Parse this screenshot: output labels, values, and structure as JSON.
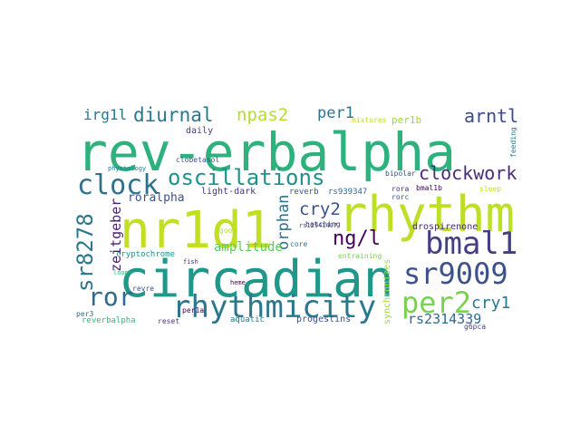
{
  "words": [
    {
      "text": "rev-erbalpha",
      "color": "#2db27d"
    },
    {
      "text": "circadian",
      "color": "#1f988b"
    },
    {
      "text": "nr1d1",
      "color": "#c2df23"
    },
    {
      "text": "rhythm",
      "color": "#bddf26"
    },
    {
      "text": "rhythmicity",
      "color": "#2a788e"
    },
    {
      "text": "bmal1",
      "color": "#433e85"
    },
    {
      "text": "sr9009",
      "color": "#3b528b"
    },
    {
      "text": "per2",
      "color": "#7ad151"
    },
    {
      "text": "clock",
      "color": "#2c728e"
    },
    {
      "text": "oscillations",
      "color": "#21918c"
    },
    {
      "text": "ror",
      "color": "#31688e"
    },
    {
      "text": "sr8278",
      "color": "#2a788e"
    },
    {
      "text": "diurnal",
      "color": "#2a788e"
    },
    {
      "text": "arntl",
      "color": "#3e4989"
    },
    {
      "text": "clockwork",
      "color": "#472d7b"
    },
    {
      "text": "ng/l",
      "color": "#440154"
    },
    {
      "text": "cry2",
      "color": "#3b528b"
    },
    {
      "text": "npas2",
      "color": "#b5de2b"
    },
    {
      "text": "per1",
      "color": "#2c728e"
    },
    {
      "text": "irg1l",
      "color": "#2a788e"
    },
    {
      "text": "zeitgeber",
      "color": "#481f70"
    },
    {
      "text": "orphan",
      "color": "#2c728e"
    },
    {
      "text": "amplitude",
      "color": "#5ec962"
    },
    {
      "text": "cry1",
      "color": "#2a788e"
    },
    {
      "text": "rs2314339",
      "color": "#31688e"
    },
    {
      "text": "roralpha",
      "color": "#3b528b"
    },
    {
      "text": "light-dark",
      "color": "#46327e"
    },
    {
      "text": "daily",
      "color": "#433e85"
    },
    {
      "text": "drospirenone",
      "color": "#482878"
    },
    {
      "text": "per1b",
      "color": "#9fda3a"
    },
    {
      "text": "cryptochrome",
      "color": "#21918c"
    },
    {
      "text": "reverbalpha",
      "color": "#35b779"
    },
    {
      "text": "aquatic",
      "color": "#2a788e"
    },
    {
      "text": "progestins",
      "color": "#3b528b"
    },
    {
      "text": "synchronizes",
      "color": "#a0da39"
    },
    {
      "text": "g6pca",
      "color": "#414487"
    },
    {
      "text": "reset",
      "color": "#46327e"
    },
    {
      "text": "revre",
      "color": "#3b528b"
    },
    {
      "text": "rs939347",
      "color": "#31688e"
    },
    {
      "text": "reverb",
      "color": "#3b528b"
    },
    {
      "text": "per1a",
      "color": "#440154"
    },
    {
      "text": "sleep",
      "color": "#c8e020"
    },
    {
      "text": "rorc",
      "color": "#3b528b"
    },
    {
      "text": "rora",
      "color": "#472d7b"
    },
    {
      "text": "mixtures",
      "color": "#b8de29"
    },
    {
      "text": "feeding",
      "color": "#2a788e"
    },
    {
      "text": "hatching",
      "color": "#482878"
    },
    {
      "text": "entraining",
      "color": "#7ad151"
    },
    {
      "text": "bipolar",
      "color": "#3b528b"
    },
    {
      "text": "bmal1b",
      "color": "#440154"
    },
    {
      "text": "core",
      "color": "#2c728e"
    },
    {
      "text": "rs12941497",
      "color": "#3b528b"
    },
    {
      "text": "physiology",
      "color": "#2a788e"
    },
    {
      "text": "clobetasol",
      "color": "#3b528b"
    },
    {
      "text": "good",
      "color": "#b5de2b"
    },
    {
      "text": "fish",
      "color": "#46327e"
    },
    {
      "text": "heme",
      "color": "#440154"
    },
    {
      "text": "loops",
      "color": "#35b779"
    },
    {
      "text": "per3",
      "color": "#31688e"
    }
  ]
}
